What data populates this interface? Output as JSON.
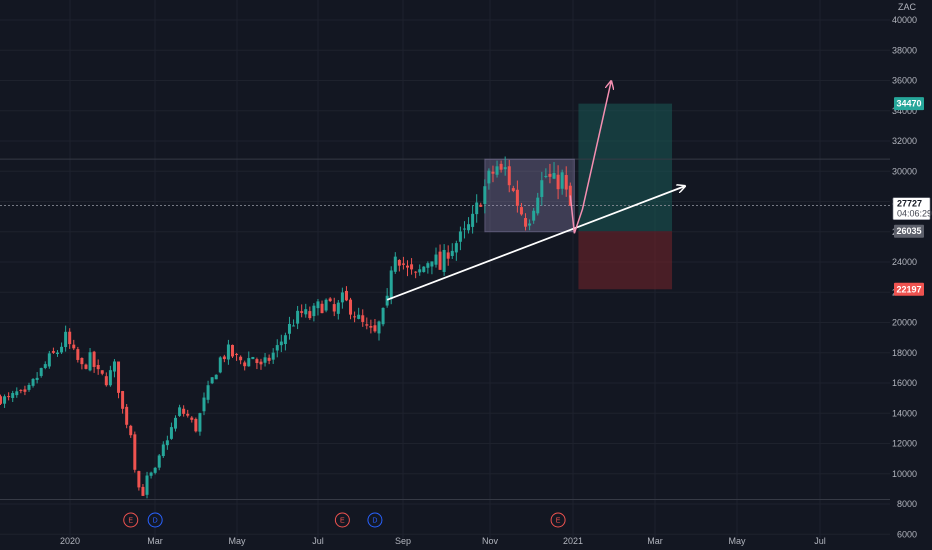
{
  "chart_data": {
    "type": "candlestick",
    "currency": "ZAC",
    "x_ticks": [
      "2020",
      "Mar",
      "May",
      "Jul",
      "Sep",
      "Nov",
      "2021",
      "Mar",
      "May",
      "Jul"
    ],
    "y_ticks": [
      6000,
      8000,
      10000,
      12000,
      14000,
      16000,
      18000,
      20000,
      22000,
      24000,
      26000,
      28000,
      30000,
      32000,
      34000,
      36000,
      38000,
      40000
    ],
    "ylim": [
      5000,
      41000
    ],
    "grid": true,
    "key_prices": {
      "target": 34470,
      "entry": 26035,
      "stop": 22197,
      "resistance": 30800,
      "support": 8300
    },
    "current_price": {
      "value": 27727,
      "countdown": "04:06:29"
    },
    "price_path": [
      [
        0,
        15000
      ],
      [
        2,
        14900
      ],
      [
        4,
        15300
      ],
      [
        6,
        15100
      ],
      [
        8,
        16000
      ],
      [
        10,
        16800
      ],
      [
        12,
        17600
      ],
      [
        14,
        18100
      ],
      [
        16,
        19000
      ],
      [
        18,
        17900
      ],
      [
        20,
        17000
      ],
      [
        22,
        17600
      ],
      [
        24,
        16600
      ],
      [
        26,
        16200
      ],
      [
        28,
        17100
      ],
      [
        30,
        14200
      ],
      [
        32,
        12700
      ],
      [
        33,
        10500
      ],
      [
        34,
        9100
      ],
      [
        35,
        8700
      ],
      [
        36,
        9700
      ],
      [
        38,
        10200
      ],
      [
        40,
        11800
      ],
      [
        42,
        13000
      ],
      [
        44,
        14200
      ],
      [
        46,
        13800
      ],
      [
        48,
        13000
      ],
      [
        50,
        14800
      ],
      [
        52,
        16200
      ],
      [
        54,
        17600
      ],
      [
        56,
        18100
      ],
      [
        58,
        17600
      ],
      [
        60,
        17400
      ],
      [
        62,
        17800
      ],
      [
        64,
        17000
      ],
      [
        66,
        17600
      ],
      [
        68,
        18300
      ],
      [
        70,
        19300
      ],
      [
        72,
        20100
      ],
      [
        74,
        20600
      ],
      [
        76,
        20400
      ],
      [
        78,
        21000
      ],
      [
        80,
        21300
      ],
      [
        82,
        20600
      ],
      [
        84,
        21500
      ],
      [
        86,
        21000
      ],
      [
        88,
        20200
      ],
      [
        90,
        19500
      ],
      [
        92,
        19200
      ],
      [
        94,
        20500
      ],
      [
        95,
        21300
      ],
      [
        96,
        23800
      ],
      [
        97,
        24800
      ],
      [
        98,
        24300
      ],
      [
        100,
        23400
      ],
      [
        102,
        23000
      ],
      [
        104,
        23700
      ],
      [
        106,
        24500
      ],
      [
        108,
        23600
      ],
      [
        110,
        24800
      ],
      [
        112,
        25300
      ],
      [
        114,
        25800
      ],
      [
        116,
        26700
      ],
      [
        118,
        28300
      ],
      [
        120,
        29500
      ],
      [
        122,
        30300
      ],
      [
        123,
        29800
      ],
      [
        124,
        30100
      ],
      [
        126,
        28600
      ],
      [
        128,
        27300
      ],
      [
        129,
        26800
      ],
      [
        130,
        27100
      ],
      [
        132,
        28800
      ],
      [
        134,
        29700
      ],
      [
        136,
        29200
      ],
      [
        138,
        29600
      ],
      [
        139,
        28400
      ],
      [
        140,
        27727
      ]
    ],
    "events": [
      {
        "label": "E",
        "week": 32,
        "kind": "earnings"
      },
      {
        "label": "D",
        "week": 38,
        "kind": "dividend"
      },
      {
        "label": "E",
        "week": 84,
        "kind": "earnings"
      },
      {
        "label": "D",
        "week": 92,
        "kind": "dividend"
      },
      {
        "label": "E",
        "week": 137,
        "kind": "earnings"
      }
    ],
    "drawings": {
      "trendline": {
        "from": [
          95,
          21500
        ],
        "to": [
          168,
          29000
        ]
      },
      "consolidation_box": {
        "from_week": 119,
        "to_week": 141,
        "low": 26000,
        "high": 30800
      },
      "projection_pink": [
        [
          140,
          28400
        ],
        [
          141,
          25900
        ],
        [
          143,
          27500
        ],
        [
          150,
          35900
        ]
      ],
      "position": {
        "from_week": 142,
        "to_week": 165
      }
    },
    "colors": {
      "background": "#131722",
      "up": "#26a69a",
      "down": "#ef5350",
      "grid": "#1e222d",
      "axis_text": "#b2b5be",
      "trendline": "#ffffff",
      "pink": "#f48fb1",
      "box": "#9c8fbf",
      "target_zone": "#1a5a55",
      "stop_zone": "#6e2329",
      "target_badge": "#26a69a",
      "stop_badge": "#ef5350",
      "entry_badge": "#5d606b",
      "dividend": "#2962ff"
    }
  }
}
